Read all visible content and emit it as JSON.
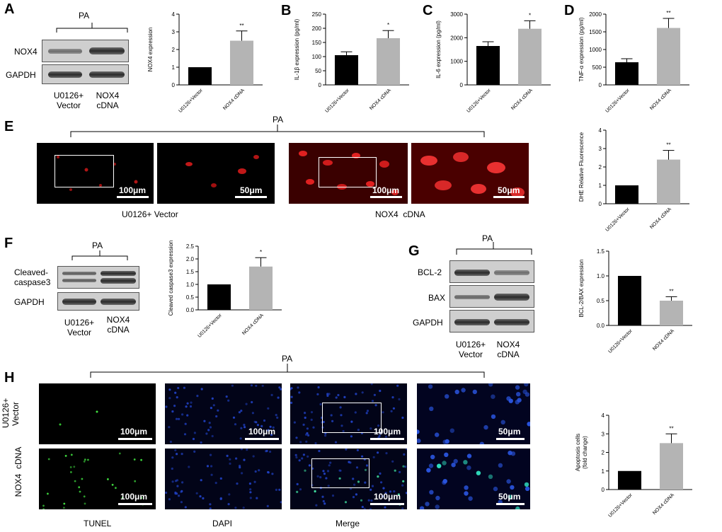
{
  "pa": "PA",
  "panels": {
    "A": "A",
    "B": "B",
    "C": "C",
    "D": "D",
    "E": "E",
    "F": "F",
    "G": "G",
    "H": "H"
  },
  "blotA": {
    "rows": [
      "NOX4",
      "GAPDH"
    ],
    "cols": [
      "U0126+\nVector",
      "NOX4\ncDNA"
    ]
  },
  "blotF": {
    "rows": [
      "Cleaved-\ncaspase3",
      "GAPDH"
    ],
    "cols": [
      "U0126+\nVector",
      "NOX4\ncDNA"
    ]
  },
  "blotG": {
    "rows": [
      "BCL-2",
      "BAX",
      "GAPDH"
    ],
    "cols": [
      "U0126+\nVector",
      "NOX4\ncDNA"
    ]
  },
  "panelE": {
    "labels": [
      "U0126+ Vector",
      "NOX4  cDNA"
    ],
    "scales": [
      "100μm",
      "50μm",
      "100μm",
      "50μm"
    ]
  },
  "panelH": {
    "rowLabels": [
      "U0126+\nVector",
      "NOX4  cDNA"
    ],
    "colLabels": [
      "TUNEL",
      "DAPI",
      "Merge"
    ],
    "scales": [
      "100μm",
      "100μm",
      "100μm",
      "50μm"
    ]
  },
  "chart_data": [
    {
      "id": "A",
      "type": "bar",
      "categories": [
        "U0126+Vector",
        "NOX4 cDNA"
      ],
      "values": [
        1.0,
        2.5
      ],
      "errors": [
        0,
        0.55
      ],
      "sig": [
        "",
        "**"
      ],
      "ylabel": "NOX4 expression",
      "ylim": [
        0,
        4
      ],
      "ticks": [
        0,
        1,
        2,
        3,
        4
      ],
      "colors": [
        "#000000",
        "#b4b4b4"
      ]
    },
    {
      "id": "B",
      "type": "bar",
      "categories": [
        "U0126+Vector",
        "NOX4 cDNA"
      ],
      "values": [
        105,
        165
      ],
      "errors": [
        12,
        27
      ],
      "sig": [
        "",
        "*"
      ],
      "ylabel": "IL-1β expression (pg/ml)",
      "ylim": [
        0,
        250
      ],
      "ticks": [
        0,
        50,
        100,
        150,
        200,
        250
      ],
      "colors": [
        "#000000",
        "#b4b4b4"
      ]
    },
    {
      "id": "C",
      "type": "bar",
      "categories": [
        "U0126+Vector",
        "NOX4 cDNA"
      ],
      "values": [
        1650,
        2380
      ],
      "errors": [
        180,
        340
      ],
      "sig": [
        "",
        "*"
      ],
      "ylabel": "IL-6 expression (pg/ml)",
      "ylim": [
        0,
        3000
      ],
      "ticks": [
        0,
        1000,
        2000,
        3000
      ],
      "colors": [
        "#000000",
        "#b4b4b4"
      ]
    },
    {
      "id": "D",
      "type": "bar",
      "categories": [
        "U0126+Vector",
        "NOX4 cDNA"
      ],
      "values": [
        640,
        1610
      ],
      "errors": [
        100,
        270
      ],
      "sig": [
        "",
        "**"
      ],
      "ylabel": "TNF-α expression (pg/ml)",
      "ylim": [
        0,
        2000
      ],
      "ticks": [
        0,
        500,
        1000,
        1500,
        2000
      ],
      "colors": [
        "#000000",
        "#b4b4b4"
      ]
    },
    {
      "id": "E",
      "type": "bar",
      "categories": [
        "U0126+Vector",
        "NOX4 cDNA"
      ],
      "values": [
        1.0,
        2.4
      ],
      "errors": [
        0,
        0.5
      ],
      "sig": [
        "",
        "**"
      ],
      "ylabel": "DHE Relative Fluorescence",
      "ylim": [
        0,
        4
      ],
      "ticks": [
        0,
        1,
        2,
        3,
        4
      ],
      "colors": [
        "#000000",
        "#b4b4b4"
      ]
    },
    {
      "id": "F",
      "type": "bar",
      "categories": [
        "U0126+Vector",
        "NOX4 cDNA"
      ],
      "values": [
        1.0,
        1.7
      ],
      "errors": [
        0,
        0.35
      ],
      "sig": [
        "",
        "*"
      ],
      "ylabel": "Cleaved caspase3 expression",
      "ylim": [
        0,
        2.5
      ],
      "ticks": [
        0.0,
        0.5,
        1.0,
        1.5,
        2.0,
        2.5
      ],
      "colors": [
        "#000000",
        "#b4b4b4"
      ]
    },
    {
      "id": "G",
      "type": "bar",
      "categories": [
        "U0126+Vector",
        "NOX4 cDNA"
      ],
      "values": [
        1.0,
        0.5
      ],
      "errors": [
        0,
        0.08
      ],
      "sig": [
        "",
        "**"
      ],
      "ylabel": "BCL-2/BAX expression",
      "ylim": [
        0,
        1.5
      ],
      "ticks": [
        0.0,
        0.5,
        1.0,
        1.5
      ],
      "colors": [
        "#000000",
        "#b4b4b4"
      ]
    },
    {
      "id": "H",
      "type": "bar",
      "categories": [
        "U0126+Vector",
        "NOX4 cDNA"
      ],
      "values": [
        1.0,
        2.5
      ],
      "errors": [
        0,
        0.5
      ],
      "sig": [
        "",
        "**"
      ],
      "ylabel": "Apoptosis cells\n(fold change)",
      "ylim": [
        0,
        4
      ],
      "ticks": [
        0,
        1,
        2,
        3,
        4
      ],
      "colors": [
        "#000000",
        "#b4b4b4"
      ]
    }
  ]
}
